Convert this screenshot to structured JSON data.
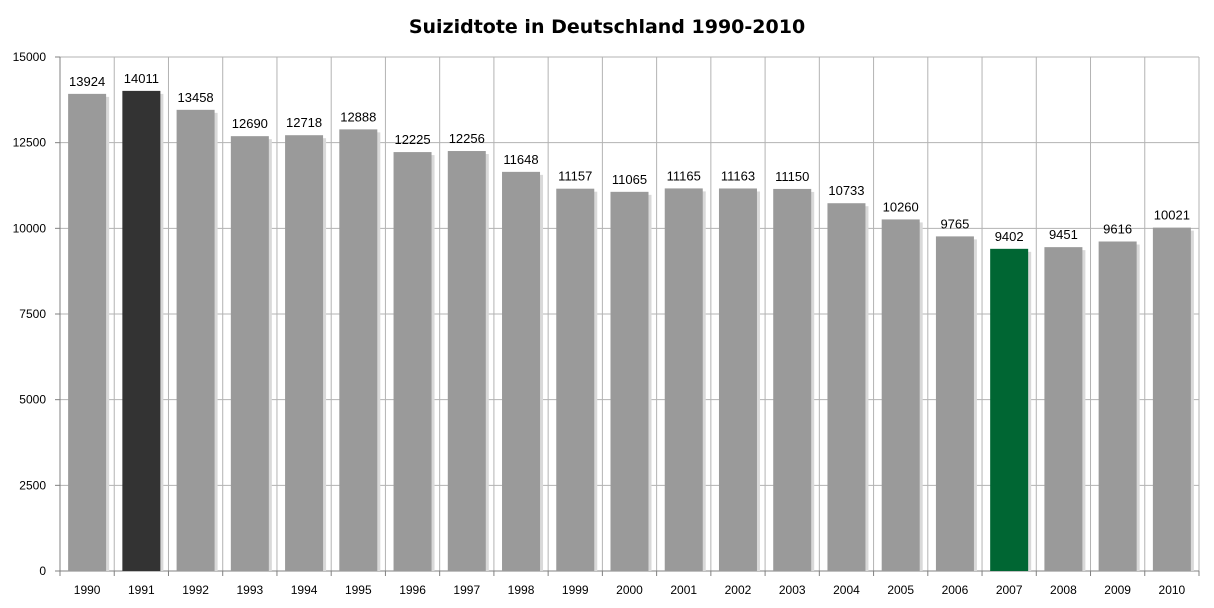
{
  "chart_data": {
    "type": "bar",
    "title": "Suizidtote in Deutschland 1990-2010",
    "xlabel": "",
    "ylabel": "",
    "categories": [
      "1990",
      "1991",
      "1992",
      "1993",
      "1994",
      "1995",
      "1996",
      "1997",
      "1998",
      "1999",
      "2000",
      "2001",
      "2002",
      "2003",
      "2004",
      "2005",
      "2006",
      "2007",
      "2008",
      "2009",
      "2010"
    ],
    "values": [
      13924,
      14011,
      13458,
      12690,
      12718,
      12888,
      12225,
      12256,
      11648,
      11157,
      11065,
      11165,
      11163,
      11150,
      10733,
      10260,
      9765,
      9402,
      9451,
      9616,
      10021
    ],
    "ylim": [
      0,
      15000
    ],
    "yticks": [
      "0",
      "2500",
      "5000",
      "7500",
      "10000",
      "12500",
      "15000"
    ],
    "grid": true,
    "legend": "none",
    "colors": {
      "default": "#9a9a9a",
      "highlight_1991": "#333333",
      "highlight_2007": "#006633"
    }
  }
}
